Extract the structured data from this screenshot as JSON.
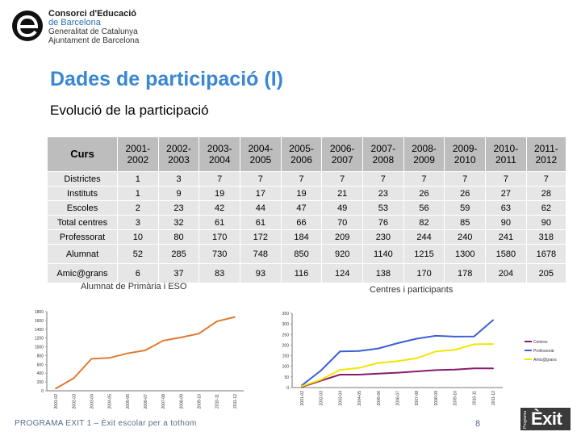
{
  "header": {
    "org_line1": "Consorci d'Educació",
    "org_line2": "de Barcelona",
    "org_line3": "Generalitat de Catalunya",
    "org_line4": "Ajuntament de Barcelona"
  },
  "slide": {
    "title": "Dades de participació (I)",
    "subtitle": "Evolució de la participació"
  },
  "table": {
    "corner": "Curs",
    "years": [
      [
        "2001-",
        "2002"
      ],
      [
        "2002-",
        "2003"
      ],
      [
        "2003-",
        "2004"
      ],
      [
        "2004-",
        "2005"
      ],
      [
        "2005-",
        "2006"
      ],
      [
        "2006-",
        "2007"
      ],
      [
        "2007-",
        "2008"
      ],
      [
        "2008-",
        "2009"
      ],
      [
        "2009-",
        "2010"
      ],
      [
        "2010-",
        "2011"
      ],
      [
        "2011-",
        "2012"
      ]
    ],
    "rows": [
      {
        "label": "Districtes",
        "values": [
          "1",
          "3",
          "7",
          "7",
          "7",
          "7",
          "7",
          "7",
          "7",
          "7",
          "7"
        ]
      },
      {
        "label": "Instituts",
        "values": [
          "1",
          "9",
          "19",
          "17",
          "19",
          "21",
          "23",
          "26",
          "26",
          "27",
          "28"
        ]
      },
      {
        "label": "Escoles",
        "values": [
          "2",
          "23",
          "42",
          "44",
          "47",
          "49",
          "53",
          "56",
          "59",
          "63",
          "62"
        ]
      },
      {
        "label": "Total centres",
        "values": [
          "3",
          "32",
          "61",
          "61",
          "66",
          "70",
          "76",
          "82",
          "85",
          "90",
          "90"
        ]
      },
      {
        "label": "Professorat",
        "values": [
          "10",
          "80",
          "170",
          "172",
          "184",
          "209",
          "230",
          "244",
          "240",
          "241",
          "318"
        ]
      },
      {
        "label": "Alumnat",
        "values": [
          "52",
          "285",
          "730",
          "748",
          "850",
          "920",
          "1140",
          "1215",
          "1300",
          "1580",
          "1678"
        ],
        "tall": true
      },
      {
        "label": "Amic@grans",
        "values": [
          "6",
          "37",
          "83",
          "93",
          "116",
          "124",
          "138",
          "170",
          "178",
          "204",
          "205"
        ],
        "tall": true
      }
    ]
  },
  "chart_data": [
    {
      "type": "line",
      "title": "Alumnat de Primària i ESO",
      "categories": [
        "2001-02",
        "2002-03",
        "2003-04",
        "2004-05",
        "2005-06",
        "2006-07",
        "2007-08",
        "2008-09",
        "2009-10",
        "2010-11",
        "2011-12"
      ],
      "y_ticks": [
        "0",
        "200",
        "400",
        "600",
        "800",
        "1000",
        "1200",
        "1400",
        "1600",
        "1800"
      ],
      "ylim": [
        0,
        1800
      ],
      "series": [
        {
          "values": [
            52,
            285,
            730,
            748,
            850,
            920,
            1140,
            1215,
            1300,
            1580,
            1678
          ],
          "color": "#e07a30"
        }
      ]
    },
    {
      "type": "line",
      "title": "Centres i participants",
      "categories": [
        "2001-02",
        "2002-03",
        "2003-04",
        "2004-05",
        "2005-06",
        "2006-07",
        "2007-08",
        "2008-09",
        "2009-10",
        "2010-11",
        "2011-12"
      ],
      "y_ticks": [
        "0",
        "50",
        "100",
        "150",
        "200",
        "250",
        "300",
        "350"
      ],
      "ylim": [
        0,
        350
      ],
      "legend_position": "right",
      "series": [
        {
          "name": "Centres",
          "values": [
            3,
            32,
            61,
            61,
            66,
            70,
            76,
            82,
            85,
            90,
            90
          ],
          "color": "#8a1a6e"
        },
        {
          "name": "Professorat",
          "values": [
            10,
            80,
            170,
            172,
            184,
            209,
            230,
            244,
            240,
            241,
            318
          ],
          "color": "#3b5fd6"
        },
        {
          "name": "Amic@grans",
          "values": [
            6,
            37,
            83,
            93,
            116,
            124,
            138,
            170,
            178,
            204,
            205
          ],
          "color": "#f2e600"
        }
      ]
    }
  ],
  "footer": {
    "program": "PROGRAMA EXIT 1 – Èxit escolar per a tothom",
    "page": "8",
    "exit_small": "Programa",
    "exit_big": "Èxit"
  }
}
